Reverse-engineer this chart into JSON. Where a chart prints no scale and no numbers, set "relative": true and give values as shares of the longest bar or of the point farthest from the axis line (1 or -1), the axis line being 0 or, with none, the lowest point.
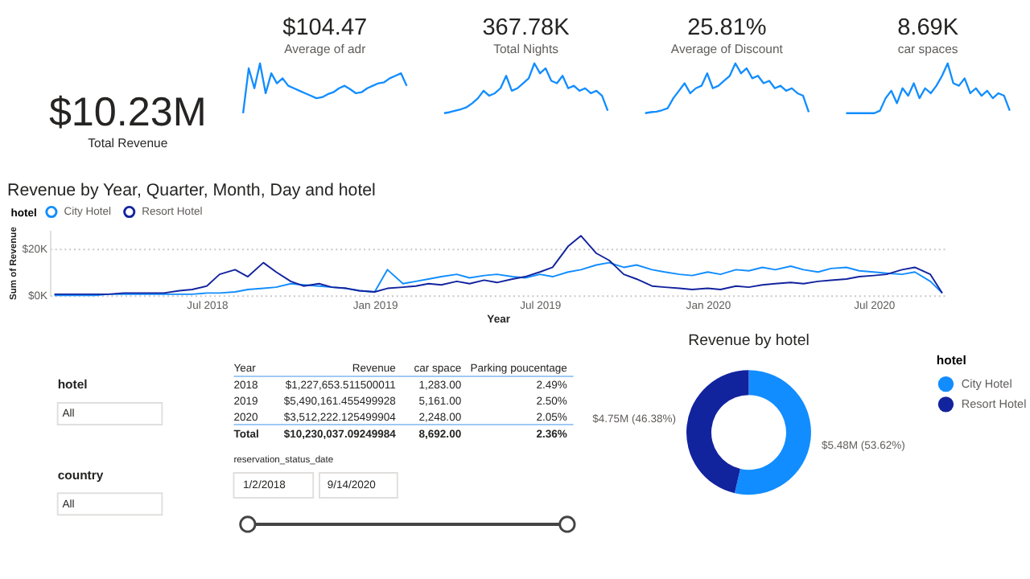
{
  "chart_data": [
    {
      "type": "other",
      "annotations": [
        "$10.23M",
        "Total Revenue"
      ]
    },
    {
      "type": "line",
      "relative": true,
      "title": "$104.47",
      "subtitle": "Average of adr",
      "color": "#118dff",
      "categories": [
        null,
        null,
        null,
        null,
        null,
        null,
        null,
        null,
        null,
        null,
        null,
        null,
        null,
        null,
        null,
        null,
        null,
        null,
        null,
        null,
        null,
        null,
        null,
        null,
        null,
        null,
        null,
        null,
        null,
        null
      ],
      "values": [
        0,
        0.9,
        0.5,
        1.0,
        0.4,
        0.8,
        0.6,
        0.7,
        0.55,
        0.5,
        0.45,
        0.4,
        0.35,
        0.3,
        0.32,
        0.38,
        0.42,
        0.5,
        0.55,
        0.48,
        0.4,
        0.42,
        0.5,
        0.55,
        0.6,
        0.62,
        0.7,
        0.75,
        0.8,
        0.55
      ]
    },
    {
      "type": "line",
      "relative": true,
      "title": "367.78K",
      "subtitle": "Total Nights",
      "color": "#118dff",
      "categories": [
        null,
        null,
        null,
        null,
        null,
        null,
        null,
        null,
        null,
        null,
        null,
        null,
        null,
        null,
        null,
        null,
        null,
        null,
        null,
        null,
        null,
        null,
        null,
        null,
        null,
        null,
        null,
        null,
        null,
        null
      ],
      "values": [
        0,
        0.02,
        0.05,
        0.08,
        0.12,
        0.2,
        0.3,
        0.45,
        0.35,
        0.4,
        0.5,
        0.75,
        0.45,
        0.5,
        0.6,
        0.7,
        1.0,
        0.8,
        0.9,
        0.65,
        0.6,
        0.75,
        0.5,
        0.55,
        0.45,
        0.5,
        0.4,
        0.45,
        0.35,
        0.05
      ]
    },
    {
      "type": "line",
      "relative": true,
      "title": "25.81%",
      "subtitle": "Average of Discount",
      "color": "#118dff",
      "categories": [
        null,
        null,
        null,
        null,
        null,
        null,
        null,
        null,
        null,
        null,
        null,
        null,
        null,
        null,
        null,
        null,
        null,
        null,
        null,
        null,
        null,
        null,
        null,
        null,
        null,
        null,
        null,
        null,
        null,
        null
      ],
      "values": [
        0,
        0.02,
        0.03,
        0.06,
        0.1,
        0.3,
        0.45,
        0.6,
        0.4,
        0.5,
        0.55,
        0.8,
        0.5,
        0.55,
        0.65,
        0.75,
        1.0,
        0.8,
        0.9,
        0.7,
        0.75,
        0.6,
        0.65,
        0.5,
        0.55,
        0.45,
        0.5,
        0.4,
        0.35,
        0.02
      ]
    },
    {
      "type": "line",
      "relative": true,
      "title": "8.69K",
      "subtitle": "car spaces",
      "color": "#118dff",
      "categories": [
        null,
        null,
        null,
        null,
        null,
        null,
        null,
        null,
        null,
        null,
        null,
        null,
        null,
        null,
        null,
        null,
        null,
        null,
        null,
        null,
        null,
        null,
        null,
        null,
        null,
        null,
        null,
        null,
        null,
        null
      ],
      "values": [
        0,
        0,
        0,
        0,
        0,
        0,
        0.05,
        0.3,
        0.45,
        0.2,
        0.5,
        0.35,
        0.6,
        0.3,
        0.5,
        0.4,
        0.55,
        0.75,
        1.0,
        0.6,
        0.55,
        0.7,
        0.4,
        0.5,
        0.35,
        0.45,
        0.3,
        0.4,
        0.35,
        0.05
      ]
    },
    {
      "type": "line",
      "title": "Revenue by Year, Quarter, Month, Day and hotel",
      "xlabel": "Year",
      "ylabel": "Sum of Revenue",
      "legend_title": "hotel",
      "legend": "top left",
      "grid": "y",
      "x": [
        "2018-01-15",
        "2018-02-01",
        "2018-02-15",
        "2018-03-01",
        "2018-03-15",
        "2018-04-01",
        "2018-04-15",
        "2018-05-01",
        "2018-05-15",
        "2018-06-01",
        "2018-06-15",
        "2018-07-01",
        "2018-07-15",
        "2018-08-01",
        "2018-08-15",
        "2018-09-01",
        "2018-09-15",
        "2018-10-01",
        "2018-10-15",
        "2018-11-01",
        "2018-11-15",
        "2018-12-01",
        "2018-12-15",
        "2019-01-01",
        "2019-01-15",
        "2019-02-01",
        "2019-02-15",
        "2019-03-01",
        "2019-03-15",
        "2019-04-01",
        "2019-04-15",
        "2019-05-01",
        "2019-05-15",
        "2019-06-01",
        "2019-06-15",
        "2019-07-01",
        "2019-07-15",
        "2019-08-01",
        "2019-08-15",
        "2019-09-01",
        "2019-09-15",
        "2019-10-01",
        "2019-10-15",
        "2019-11-01",
        "2019-11-15",
        "2019-12-01",
        "2019-12-15",
        "2020-01-01",
        "2020-01-15",
        "2020-02-01",
        "2020-02-15",
        "2020-03-01",
        "2020-03-15",
        "2020-04-01",
        "2020-04-15",
        "2020-05-01",
        "2020-05-15",
        "2020-06-01",
        "2020-06-15",
        "2020-07-01",
        "2020-07-15",
        "2020-08-01",
        "2020-08-15",
        "2020-09-01",
        "2020-09-14"
      ],
      "xlim": [
        "2018-01-10",
        "2020-09-18"
      ],
      "xticks": [
        {
          "value": "2018-07-01",
          "label": "Jul 2018"
        },
        {
          "value": "2019-01-01",
          "label": "Jan 2019"
        },
        {
          "value": "2019-07-01",
          "label": "Jul 2019"
        },
        {
          "value": "2020-01-01",
          "label": "Jan 2020"
        },
        {
          "value": "2020-07-01",
          "label": "Jul 2020"
        }
      ],
      "ylim": [
        0,
        28000
      ],
      "yticks": [
        {
          "value": 0,
          "label": "$0K"
        },
        {
          "value": 20000,
          "label": "$20K"
        }
      ],
      "series": [
        {
          "name": "City Hotel",
          "color": "#118dff",
          "values": [
            0,
            0,
            0,
            0,
            500,
            500,
            500,
            500,
            500,
            500,
            500,
            1000,
            1000,
            1500,
            2500,
            3000,
            3500,
            5000,
            4500,
            4000,
            3500,
            3000,
            2000,
            1500,
            11000,
            5000,
            6000,
            7000,
            8000,
            9000,
            7500,
            8500,
            9000,
            8000,
            7500,
            9000,
            8000,
            10000,
            11000,
            13000,
            14000,
            12000,
            13000,
            11000,
            10000,
            9000,
            8500,
            10000,
            9000,
            11000,
            10500,
            12000,
            11000,
            12500,
            11000,
            10000,
            11500,
            12000,
            10500,
            10000,
            9500,
            9000,
            10000,
            6000,
            1000
          ]
        },
        {
          "name": "Resort Hotel",
          "color": "#12239e",
          "values": [
            500,
            500,
            500,
            500,
            500,
            1000,
            1000,
            1000,
            1000,
            2000,
            2500,
            4000,
            9000,
            11000,
            8000,
            14000,
            10000,
            6000,
            4000,
            5000,
            3500,
            3000,
            2000,
            1500,
            3000,
            3500,
            4000,
            5000,
            4500,
            6000,
            5000,
            6500,
            5500,
            7000,
            8000,
            10000,
            12000,
            21000,
            25500,
            18000,
            15000,
            9000,
            7000,
            4000,
            3500,
            3000,
            2500,
            3000,
            2500,
            4000,
            3500,
            4500,
            5000,
            5500,
            5000,
            6000,
            6500,
            7000,
            8000,
            8500,
            9000,
            11000,
            12000,
            9000,
            1000
          ]
        }
      ]
    },
    {
      "type": "other",
      "annotations": [
        "hotel",
        "All",
        "country",
        "All"
      ]
    },
    {
      "type": "other",
      "annotations": [
        "Year",
        "Revenue",
        "car space",
        "Parking poucentage",
        "2018",
        "$1,227,653.511500011",
        "1,283.00",
        "2.49%",
        "2019",
        "$5,490,161.455499928",
        "5,161.00",
        "2.50%",
        "2020",
        "$3,512,222.125499904",
        "2,248.00",
        "2.05%",
        "Total",
        "$10,230,037.09249984",
        "8,692.00",
        "2.36%"
      ]
    },
    {
      "type": "other",
      "annotations": [
        "reservation_status_date",
        "1/2/2018",
        "9/14/2020"
      ]
    },
    {
      "type": "donut",
      "title": "Revenue by hotel",
      "legend_title": "hotel",
      "legend": "right",
      "categories": [
        "City Hotel",
        "Resort Hotel"
      ],
      "values": [
        53.62,
        46.38
      ],
      "colors": [
        "#118dff",
        "#12239e"
      ],
      "value_labels": [
        "$5.48M (53.62%)",
        "$4.75M (46.38%)"
      ]
    }
  ]
}
